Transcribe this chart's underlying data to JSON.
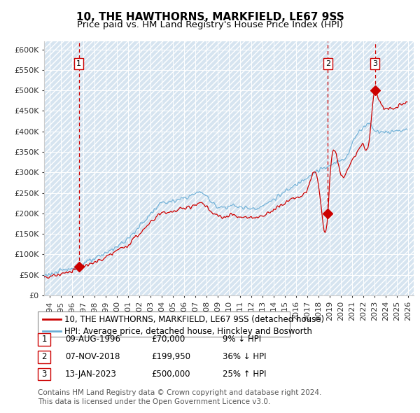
{
  "title": "10, THE HAWTHORNS, MARKFIELD, LE67 9SS",
  "subtitle": "Price paid vs. HM Land Registry's House Price Index (HPI)",
  "ylim": [
    0,
    620000
  ],
  "ytick_labels": [
    "£0",
    "£50K",
    "£100K",
    "£150K",
    "£200K",
    "£250K",
    "£300K",
    "£350K",
    "£400K",
    "£450K",
    "£500K",
    "£550K",
    "£600K"
  ],
  "plot_bg_color": "#d6e4f0",
  "hpi_line_color": "#6baed6",
  "price_line_color": "#cc0000",
  "marker_color": "#cc0000",
  "label_box_edge_color": "#cc0000",
  "transactions": [
    {
      "num": 1,
      "date_num": 1996.604,
      "price": 70000,
      "date_str": "09-AUG-1996",
      "price_str": "£70,000",
      "pct": "9%",
      "dir": "↓"
    },
    {
      "num": 2,
      "date_num": 2018.836,
      "price": 199950,
      "date_str": "07-NOV-2018",
      "price_str": "£199,950",
      "pct": "36%",
      "dir": "↓"
    },
    {
      "num": 3,
      "date_num": 2023.037,
      "price": 500000,
      "date_str": "13-JAN-2023",
      "price_str": "£500,000",
      "pct": "25%",
      "dir": "↑"
    }
  ],
  "legend_line1": "10, THE HAWTHORNS, MARKFIELD, LE67 9SS (detached house)",
  "legend_line2": "HPI: Average price, detached house, Hinckley and Bosworth",
  "footnote_line1": "Contains HM Land Registry data © Crown copyright and database right 2024.",
  "footnote_line2": "This data is licensed under the Open Government Licence v3.0.",
  "title_fontsize": 11,
  "subtitle_fontsize": 9.5,
  "tick_fontsize": 8,
  "legend_fontsize": 8.5,
  "table_fontsize": 8.5,
  "footnote_fontsize": 7.5
}
